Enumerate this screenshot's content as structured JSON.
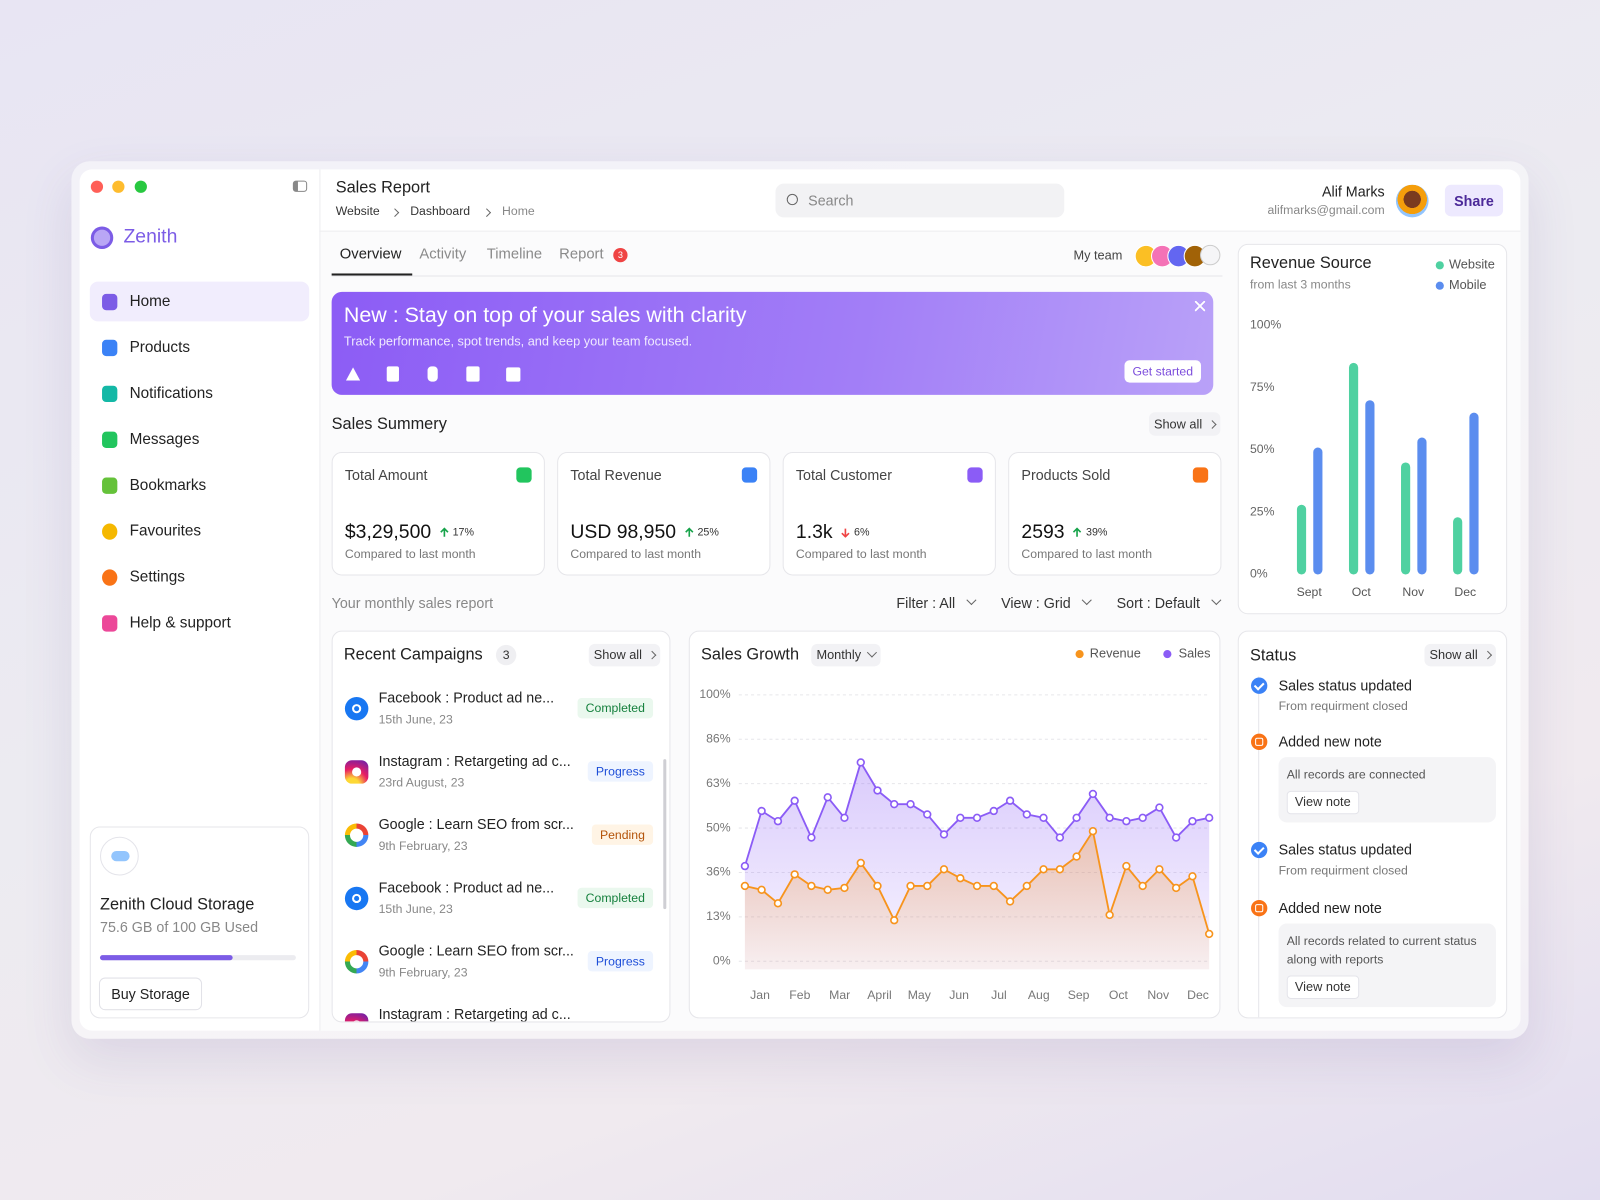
{
  "sidebar": {
    "brand": "Zenith",
    "nav": {
      "items": [
        "Home",
        "Products",
        "Notifications",
        "Messages",
        "Bookmarks",
        "Favourites",
        "Settings",
        "Help & support"
      ],
      "active": 0
    },
    "storage": {
      "title": "Zenith Cloud Storage",
      "usage": "75.6 GB of 100 GB Used",
      "button": "Buy Storage"
    }
  },
  "header": {
    "title": "Sales Report",
    "breadcrumbs": [
      "Website",
      "Dashboard",
      "Home"
    ],
    "search_placeholder": "Search",
    "user_name": "Alif Marks",
    "user_email": "alifmarks@gmail.com",
    "share": "Share"
  },
  "tabs": {
    "items": [
      "Overview",
      "Activity",
      "Timeline",
      "Report"
    ],
    "active": 0,
    "report_badge": 3,
    "team_label": "My team"
  },
  "banner": {
    "title": "New : Stay on top of your sales with clarity",
    "subtitle": "Track performance, spot trends, and keep your team focused.",
    "button": "Get started"
  },
  "summary": {
    "title": "Sales Summery",
    "show_all": "Show all",
    "cards": [
      {
        "label": "Total Amount",
        "value": "$3,29,500",
        "change": "17%",
        "trend": "up",
        "compare": "Compared to last month"
      },
      {
        "label": "Total Revenue",
        "value": "USD 98,950",
        "change": "25%",
        "trend": "up",
        "compare": "Compared to last month"
      },
      {
        "label": "Total Customer",
        "value": "1.3k",
        "change": "6%",
        "trend": "down",
        "compare": "Compared to last month"
      },
      {
        "label": "Products Sold",
        "value": "2593",
        "change": "39%",
        "trend": "up",
        "compare": "Compared to last month"
      }
    ]
  },
  "report_bar": {
    "title": "Your monthly sales report",
    "filters": [
      "Filter : All",
      "View : Grid",
      "Sort : Default"
    ]
  },
  "campaigns": {
    "title": "Recent Campaigns",
    "count": 3,
    "show_all": "Show all",
    "items": [
      {
        "title": "Facebook : Product ad ne...",
        "date": "15th June, 23",
        "status": "Completed"
      },
      {
        "title": "Instagram : Retargeting ad c...",
        "date": "23rd August, 23",
        "status": "Progress"
      },
      {
        "title": "Google : Learn SEO from scr...",
        "date": "9th February, 23",
        "status": "Pending"
      },
      {
        "title": "Facebook : Product ad ne...",
        "date": "15th June, 23",
        "status": "Completed"
      },
      {
        "title": "Google : Learn SEO from scr...",
        "date": "9th February, 23",
        "status": "Progress"
      },
      {
        "title": "Instagram : Retargeting ad c..."
      }
    ]
  },
  "sales_growth": {
    "type": "line",
    "title": "Sales Growth",
    "period": "Monthly",
    "grid": true,
    "y_scale": "piecewise",
    "x": [
      0.62,
      1.04,
      1.45,
      1.87,
      2.29,
      2.7,
      3.12,
      3.53,
      3.95,
      4.37,
      4.78,
      5.2,
      5.62,
      6.03,
      6.45,
      6.87,
      7.28,
      7.7,
      8.12,
      8.53,
      8.95,
      9.36,
      9.78,
      10.2,
      10.61,
      11.03,
      11.45,
      11.86,
      12.28
    ],
    "xlim": [
      0.62,
      12.28
    ],
    "xticks": [
      {
        "value": 1,
        "label": "Jan"
      },
      {
        "value": 2,
        "label": "Feb"
      },
      {
        "value": 3,
        "label": "Mar"
      },
      {
        "value": 4,
        "label": "April"
      },
      {
        "value": 5,
        "label": "May"
      },
      {
        "value": 6,
        "label": "Jun"
      },
      {
        "value": 7,
        "label": "Jul"
      },
      {
        "value": 8,
        "label": "Aug"
      },
      {
        "value": 9,
        "label": "Sep"
      },
      {
        "value": 10,
        "label": "Oct"
      },
      {
        "value": 11,
        "label": "Nov"
      },
      {
        "value": 12,
        "label": "Dec"
      }
    ],
    "ylim": [
      0,
      100
    ],
    "yticks": [
      {
        "value": 0,
        "label": "0%"
      },
      {
        "value": 13,
        "label": "13%"
      },
      {
        "value": 36,
        "label": "36%"
      },
      {
        "value": 50,
        "label": "50%"
      },
      {
        "value": 63,
        "label": "63%"
      },
      {
        "value": 86,
        "label": "86%"
      },
      {
        "value": 100,
        "label": "100%"
      }
    ],
    "series": [
      {
        "name": "Revenue",
        "color": "#f7941d",
        "values": [
          29,
          27,
          20,
          35,
          29,
          27,
          28,
          39,
          29,
          12,
          29,
          29,
          37,
          33,
          29,
          29,
          21,
          29,
          37,
          37,
          41,
          49,
          14,
          38,
          29,
          37,
          28,
          34,
          8
        ]
      },
      {
        "name": "Sales",
        "color": "#8b5cf6",
        "values": [
          38,
          55,
          52,
          58,
          47,
          59,
          53,
          74,
          61,
          57,
          57,
          54,
          48,
          53,
          53,
          55,
          58,
          54,
          53,
          47,
          53,
          60,
          53,
          52,
          53,
          56,
          47,
          52,
          53
        ]
      }
    ]
  },
  "revenue_source": {
    "type": "bar",
    "title": "Revenue Source",
    "subtitle": "from last 3 months",
    "grid": false,
    "categories": [
      "Sept",
      "Oct",
      "Nov",
      "Dec"
    ],
    "ylim": [
      0,
      100
    ],
    "yticks": [
      {
        "value": 0,
        "label": "0%"
      },
      {
        "value": 25,
        "label": "25%"
      },
      {
        "value": 50,
        "label": "50%"
      },
      {
        "value": 75,
        "label": "75%"
      },
      {
        "value": 100,
        "label": "100%"
      }
    ],
    "series": [
      {
        "name": "Website",
        "color": "#4fd1a1",
        "values": [
          28,
          85,
          45,
          23
        ]
      },
      {
        "name": "Mobile",
        "color": "#5b8def",
        "values": [
          51,
          70,
          55,
          65
        ]
      }
    ]
  },
  "status": {
    "title": "Status",
    "show_all": "Show all",
    "items": [
      {
        "title": "Sales status updated",
        "detail": "From requirment closed"
      },
      {
        "title": "Added new note",
        "note": "All records are connected",
        "action": "View note"
      },
      {
        "title": "Sales status updated",
        "detail": "From requirment closed"
      },
      {
        "title": "Added new note",
        "note": "All records related to current status along with reports",
        "action": "View note"
      }
    ]
  }
}
